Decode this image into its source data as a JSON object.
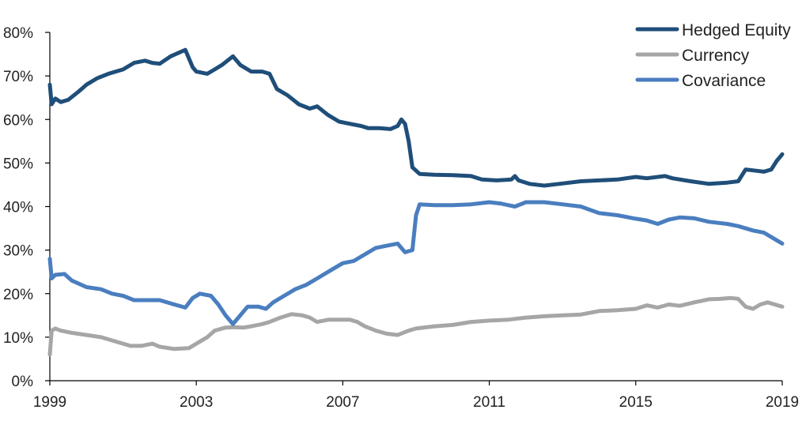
{
  "chart_data": {
    "type": "line",
    "title": "",
    "xlabel": "",
    "ylabel": "",
    "xlim": [
      1999,
      2019
    ],
    "ylim": [
      0,
      80
    ],
    "x_ticks": [
      "1999",
      "2003",
      "2007",
      "2011",
      "2015",
      "2019"
    ],
    "y_ticks": [
      "0%",
      "10%",
      "20%",
      "30%",
      "40%",
      "50%",
      "60%",
      "70%",
      "80%"
    ],
    "grid": false,
    "legend": "top-right",
    "series": [
      {
        "name": "Hedged Equity",
        "color": "#1f4e79",
        "points": [
          [
            1999.0,
            68
          ],
          [
            1999.05,
            63.5
          ],
          [
            1999.15,
            64.8
          ],
          [
            1999.3,
            64
          ],
          [
            1999.5,
            64.5
          ],
          [
            1999.8,
            66.5
          ],
          [
            2000.0,
            68
          ],
          [
            2000.3,
            69.5
          ],
          [
            2000.6,
            70.5
          ],
          [
            2001.0,
            71.5
          ],
          [
            2001.3,
            73
          ],
          [
            2001.6,
            73.5
          ],
          [
            2001.8,
            73
          ],
          [
            2002.0,
            72.8
          ],
          [
            2002.3,
            74.5
          ],
          [
            2002.7,
            76
          ],
          [
            2002.9,
            72
          ],
          [
            2003.0,
            71
          ],
          [
            2003.3,
            70.5
          ],
          [
            2003.5,
            71.5
          ],
          [
            2003.7,
            72.5
          ],
          [
            2004.0,
            74.5
          ],
          [
            2004.2,
            72.5
          ],
          [
            2004.5,
            71
          ],
          [
            2004.8,
            71
          ],
          [
            2005.0,
            70.5
          ],
          [
            2005.2,
            67
          ],
          [
            2005.5,
            65.5
          ],
          [
            2005.8,
            63.5
          ],
          [
            2006.1,
            62.5
          ],
          [
            2006.3,
            63
          ],
          [
            2006.6,
            61
          ],
          [
            2006.9,
            59.5
          ],
          [
            2007.2,
            59
          ],
          [
            2007.5,
            58.5
          ],
          [
            2007.7,
            58
          ],
          [
            2008.0,
            58
          ],
          [
            2008.3,
            57.8
          ],
          [
            2008.5,
            58.5
          ],
          [
            2008.6,
            60
          ],
          [
            2008.7,
            59
          ],
          [
            2008.8,
            55
          ],
          [
            2008.9,
            49
          ],
          [
            2009.1,
            47.5
          ],
          [
            2009.5,
            47.3
          ],
          [
            2010.0,
            47.2
          ],
          [
            2010.5,
            47
          ],
          [
            2010.8,
            46.2
          ],
          [
            2011.2,
            46
          ],
          [
            2011.6,
            46.2
          ],
          [
            2011.7,
            47
          ],
          [
            2011.8,
            46
          ],
          [
            2012.1,
            45.2
          ],
          [
            2012.5,
            44.8
          ],
          [
            2013.0,
            45.3
          ],
          [
            2013.5,
            45.8
          ],
          [
            2014.0,
            46
          ],
          [
            2014.5,
            46.2
          ],
          [
            2015.0,
            46.8
          ],
          [
            2015.3,
            46.5
          ],
          [
            2015.8,
            47
          ],
          [
            2016.0,
            46.5
          ],
          [
            2016.5,
            45.8
          ],
          [
            2017.0,
            45.2
          ],
          [
            2017.5,
            45.5
          ],
          [
            2017.8,
            45.8
          ],
          [
            2018.0,
            48.5
          ],
          [
            2018.2,
            48.3
          ],
          [
            2018.5,
            48
          ],
          [
            2018.7,
            48.5
          ],
          [
            2018.85,
            50.5
          ],
          [
            2019.0,
            52
          ]
        ]
      },
      {
        "name": "Currency",
        "color": "#a6a6a6",
        "points": [
          [
            1999.0,
            6
          ],
          [
            1999.05,
            11.5
          ],
          [
            1999.15,
            12
          ],
          [
            1999.3,
            11.5
          ],
          [
            1999.6,
            11
          ],
          [
            2000.0,
            10.5
          ],
          [
            2000.4,
            10
          ],
          [
            2000.8,
            9
          ],
          [
            2001.2,
            8
          ],
          [
            2001.5,
            8
          ],
          [
            2001.8,
            8.5
          ],
          [
            2002.0,
            7.8
          ],
          [
            2002.4,
            7.3
          ],
          [
            2002.8,
            7.5
          ],
          [
            2003.0,
            8.5
          ],
          [
            2003.3,
            10
          ],
          [
            2003.5,
            11.5
          ],
          [
            2003.8,
            12.2
          ],
          [
            2004.0,
            12.3
          ],
          [
            2004.3,
            12.2
          ],
          [
            2004.5,
            12.5
          ],
          [
            2004.8,
            13
          ],
          [
            2005.0,
            13.5
          ],
          [
            2005.3,
            14.5
          ],
          [
            2005.6,
            15.3
          ],
          [
            2005.9,
            15
          ],
          [
            2006.1,
            14.5
          ],
          [
            2006.3,
            13.5
          ],
          [
            2006.6,
            14
          ],
          [
            2006.9,
            14
          ],
          [
            2007.2,
            14
          ],
          [
            2007.4,
            13.5
          ],
          [
            2007.6,
            12.5
          ],
          [
            2007.9,
            11.5
          ],
          [
            2008.2,
            10.8
          ],
          [
            2008.5,
            10.5
          ],
          [
            2008.8,
            11.5
          ],
          [
            2009.0,
            12
          ],
          [
            2009.5,
            12.5
          ],
          [
            2010.0,
            12.8
          ],
          [
            2010.5,
            13.5
          ],
          [
            2011.0,
            13.8
          ],
          [
            2011.5,
            14
          ],
          [
            2012.0,
            14.5
          ],
          [
            2012.5,
            14.8
          ],
          [
            2013.0,
            15
          ],
          [
            2013.5,
            15.2
          ],
          [
            2014.0,
            16
          ],
          [
            2014.5,
            16.2
          ],
          [
            2015.0,
            16.5
          ],
          [
            2015.3,
            17.3
          ],
          [
            2015.6,
            16.8
          ],
          [
            2015.9,
            17.5
          ],
          [
            2016.2,
            17.2
          ],
          [
            2016.6,
            18
          ],
          [
            2017.0,
            18.7
          ],
          [
            2017.3,
            18.8
          ],
          [
            2017.6,
            19
          ],
          [
            2017.8,
            18.8
          ],
          [
            2018.0,
            17
          ],
          [
            2018.2,
            16.5
          ],
          [
            2018.4,
            17.5
          ],
          [
            2018.6,
            18
          ],
          [
            2018.8,
            17.5
          ],
          [
            2019.0,
            17
          ]
        ]
      },
      {
        "name": "Covariance",
        "color": "#4a7ebf",
        "points": [
          [
            1999.0,
            28
          ],
          [
            1999.05,
            23.5
          ],
          [
            1999.15,
            24.3
          ],
          [
            1999.4,
            24.5
          ],
          [
            1999.6,
            23
          ],
          [
            2000.0,
            21.5
          ],
          [
            2000.4,
            21
          ],
          [
            2000.7,
            20
          ],
          [
            2001.0,
            19.5
          ],
          [
            2001.3,
            18.5
          ],
          [
            2001.6,
            18.5
          ],
          [
            2002.0,
            18.5
          ],
          [
            2002.4,
            17.5
          ],
          [
            2002.7,
            16.8
          ],
          [
            2002.9,
            19
          ],
          [
            2003.1,
            20
          ],
          [
            2003.4,
            19.5
          ],
          [
            2003.6,
            17.5
          ],
          [
            2003.8,
            15
          ],
          [
            2004.0,
            13
          ],
          [
            2004.2,
            15
          ],
          [
            2004.4,
            17
          ],
          [
            2004.7,
            17
          ],
          [
            2004.9,
            16.5
          ],
          [
            2005.1,
            18
          ],
          [
            2005.4,
            19.5
          ],
          [
            2005.7,
            21
          ],
          [
            2006.0,
            22
          ],
          [
            2006.3,
            23.5
          ],
          [
            2006.5,
            24.5
          ],
          [
            2006.8,
            26
          ],
          [
            2007.0,
            27
          ],
          [
            2007.3,
            27.5
          ],
          [
            2007.6,
            29
          ],
          [
            2007.9,
            30.5
          ],
          [
            2008.2,
            31
          ],
          [
            2008.5,
            31.5
          ],
          [
            2008.7,
            29.5
          ],
          [
            2008.9,
            30
          ],
          [
            2009.0,
            38
          ],
          [
            2009.1,
            40.5
          ],
          [
            2009.5,
            40.3
          ],
          [
            2010.0,
            40.3
          ],
          [
            2010.5,
            40.5
          ],
          [
            2011.0,
            41
          ],
          [
            2011.3,
            40.7
          ],
          [
            2011.7,
            40
          ],
          [
            2012.0,
            41
          ],
          [
            2012.5,
            41
          ],
          [
            2013.0,
            40.5
          ],
          [
            2013.5,
            40
          ],
          [
            2014.0,
            38.5
          ],
          [
            2014.5,
            38
          ],
          [
            2015.0,
            37.2
          ],
          [
            2015.3,
            36.8
          ],
          [
            2015.6,
            36
          ],
          [
            2015.9,
            37
          ],
          [
            2016.2,
            37.5
          ],
          [
            2016.6,
            37.3
          ],
          [
            2017.0,
            36.5
          ],
          [
            2017.5,
            36
          ],
          [
            2017.8,
            35.5
          ],
          [
            2018.2,
            34.5
          ],
          [
            2018.5,
            34
          ],
          [
            2018.8,
            32.5
          ],
          [
            2019.0,
            31.5
          ]
        ]
      }
    ]
  }
}
